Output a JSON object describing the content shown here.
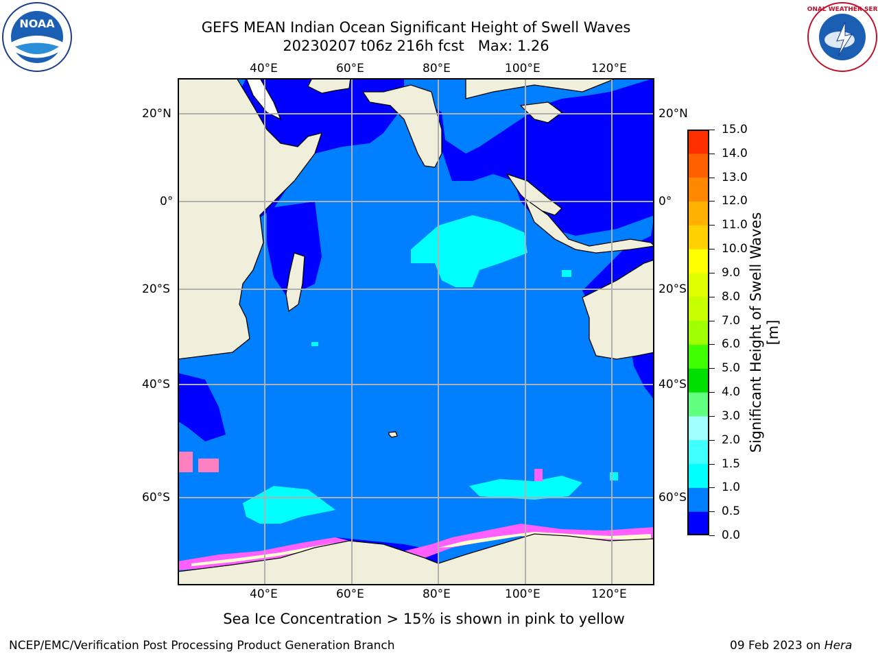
{
  "title": {
    "line1": "GEFS MEAN Indian Ocean Significant Height of Swell Waves",
    "line2": "20230207 t06z 216h fcst   Max: 1.26"
  },
  "map": {
    "lon_ticks": [
      "40°E",
      "60°E",
      "80°E",
      "100°E",
      "120°E"
    ],
    "lat_ticks": [
      "20°N",
      "0°",
      "20°S",
      "40°S",
      "60°S"
    ],
    "colors": {
      "land": "#efefdc",
      "level_0_0.5": "#0000ff",
      "level_0.5_1.0": "#0080ff",
      "level_1.0_1.5": "#00ffff",
      "ice_pink": "#ff60ff",
      "ice_yellow": "#ffff80",
      "grid": "#b0b0b0"
    }
  },
  "colorbar": {
    "title": "Significant Height of Swell Waves [m]",
    "labels": [
      "15.0",
      "14.0",
      "13.0",
      "12.0",
      "11.0",
      "10.0",
      "9.0",
      "8.0",
      "7.0",
      "6.0",
      "5.0",
      "4.0",
      "3.0",
      "2.0",
      "1.5",
      "1.0",
      "0.5",
      "0.0"
    ],
    "colors_bottom_to_top": [
      "#0000ff",
      "#0080ff",
      "#00ffff",
      "#40ffff",
      "#a0ffff",
      "#60ff80",
      "#00e000",
      "#40ff00",
      "#a0ff00",
      "#c8ff00",
      "#e0ff00",
      "#ffff00",
      "#ffd000",
      "#ffb000",
      "#ff8800",
      "#ff6000",
      "#ff3000"
    ]
  },
  "footnote": "Sea Ice Concentration > 15% is shown in pink to yellow",
  "credits": {
    "left": "NCEP/EMC/Verification Post Processing Product Generation Branch",
    "right_date": "09 Feb 2023 on ",
    "right_host": "Hera"
  },
  "logos": {
    "noaa_text": "NOAA",
    "nws_text": "NATIONAL WEATHER SERVICE"
  }
}
